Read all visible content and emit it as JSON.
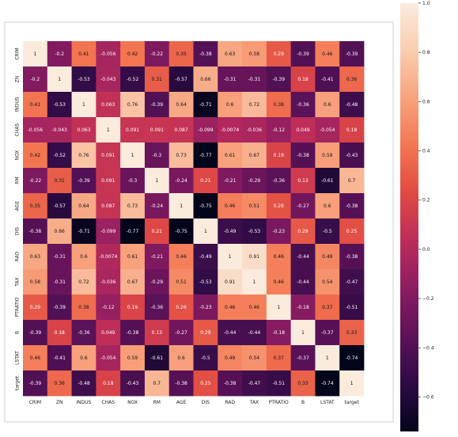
{
  "chart_data": {
    "type": "heatmap",
    "title": "",
    "xlabel": "",
    "ylabel": "",
    "x_labels": [
      "CRIM",
      "ZN",
      "INDUS",
      "CHAS",
      "NOX",
      "RM",
      "AGE",
      "DIS",
      "RAD",
      "TAX",
      "PTRATIO",
      "B",
      "LSTAT",
      "target"
    ],
    "y_labels": [
      "CRIM",
      "ZN",
      "INDUS",
      "CHAS",
      "NOX",
      "RM",
      "AGE",
      "DIS",
      "RAD",
      "TAX",
      "PTRATIO",
      "B",
      "LSTAT",
      "target"
    ],
    "cell_labels": [
      [
        "1",
        "-0.2",
        "0.41",
        "-0.056",
        "0.42",
        "-0.22",
        "0.35",
        "-0.38",
        "0.63",
        "0.58",
        "0.29",
        "-0.39",
        "0.46",
        "-0.39"
      ],
      [
        "-0.2",
        "1",
        "-0.53",
        "-0.043",
        "-0.52",
        "0.31",
        "-0.57",
        "0.66",
        "-0.31",
        "-0.31",
        "-0.39",
        "0.18",
        "-0.41",
        "0.36"
      ],
      [
        "0.41",
        "-0.53",
        "1",
        "0.063",
        "0.76",
        "-0.39",
        "0.64",
        "-0.71",
        "0.6",
        "0.72",
        "0.38",
        "-0.36",
        "0.6",
        "-0.48"
      ],
      [
        "-0.056",
        "-0.043",
        "0.063",
        "1",
        "0.091",
        "0.091",
        "0.087",
        "-0.099",
        "-0.0074",
        "-0.036",
        "-0.12",
        "0.049",
        "-0.054",
        "0.18"
      ],
      [
        "0.42",
        "-0.52",
        "0.76",
        "0.091",
        "1",
        "-0.3",
        "0.73",
        "-0.77",
        "0.61",
        "0.67",
        "0.19",
        "-0.38",
        "0.59",
        "-0.43"
      ],
      [
        "-0.22",
        "0.31",
        "-0.39",
        "0.091",
        "-0.3",
        "1",
        "-0.24",
        "0.21",
        "-0.21",
        "-0.29",
        "-0.36",
        "0.13",
        "-0.61",
        "0.7"
      ],
      [
        "0.35",
        "-0.57",
        "0.64",
        "0.087",
        "0.73",
        "-0.24",
        "1",
        "-0.75",
        "0.46",
        "0.51",
        "0.26",
        "-0.27",
        "0.6",
        "-0.38"
      ],
      [
        "-0.38",
        "0.66",
        "-0.71",
        "-0.099",
        "-0.77",
        "0.21",
        "-0.75",
        "1",
        "-0.49",
        "-0.53",
        "-0.23",
        "0.29",
        "-0.5",
        "0.25"
      ],
      [
        "0.63",
        "-0.31",
        "0.6",
        "-0.0074",
        "0.61",
        "-0.21",
        "0.46",
        "-0.49",
        "1",
        "0.91",
        "0.46",
        "-0.44",
        "0.49",
        "-0.38"
      ],
      [
        "0.58",
        "-0.31",
        "0.72",
        "-0.036",
        "0.67",
        "-0.29",
        "0.51",
        "-0.53",
        "0.91",
        "1",
        "0.46",
        "-0.44",
        "0.54",
        "-0.47"
      ],
      [
        "0.29",
        "-0.39",
        "0.38",
        "-0.12",
        "0.19",
        "-0.36",
        "0.26",
        "-0.23",
        "0.46",
        "0.46",
        "1",
        "-0.18",
        "0.37",
        "-0.51"
      ],
      [
        "-0.39",
        "0.18",
        "-0.36",
        "0.049",
        "-0.38",
        "0.13",
        "-0.27",
        "0.29",
        "-0.44",
        "-0.44",
        "-0.18",
        "1",
        "-0.37",
        "0.33"
      ],
      [
        "0.46",
        "-0.41",
        "0.6",
        "-0.054",
        "0.59",
        "-0.61",
        "0.6",
        "-0.5",
        "0.49",
        "0.54",
        "0.37",
        "-0.37",
        "1",
        "-0.74"
      ],
      [
        "-0.39",
        "0.36",
        "-0.48",
        "0.18",
        "-0.43",
        "0.7",
        "-0.38",
        "0.25",
        "-0.38",
        "-0.47",
        "-0.51",
        "0.33",
        "-0.74",
        "1"
      ]
    ],
    "colorbar": {
      "range": [
        -0.74,
        1.0
      ],
      "ticks": [
        "1.0",
        "0.8",
        "0.6",
        "0.4",
        "0.2",
        "0.0",
        "−0.2",
        "−0.4",
        "−0.6"
      ]
    },
    "colormap": [
      "#03051a",
      "#2e0b44",
      "#5c1259",
      "#8c1c62",
      "#bb2c5b",
      "#e04a43",
      "#f37651",
      "#f7a37e",
      "#f9cdb0",
      "#faebdd"
    ],
    "annotation_dark_text": "#111111",
    "annotation_light_text": "#ffffff",
    "grid": false,
    "legend": "colorbar-right"
  }
}
